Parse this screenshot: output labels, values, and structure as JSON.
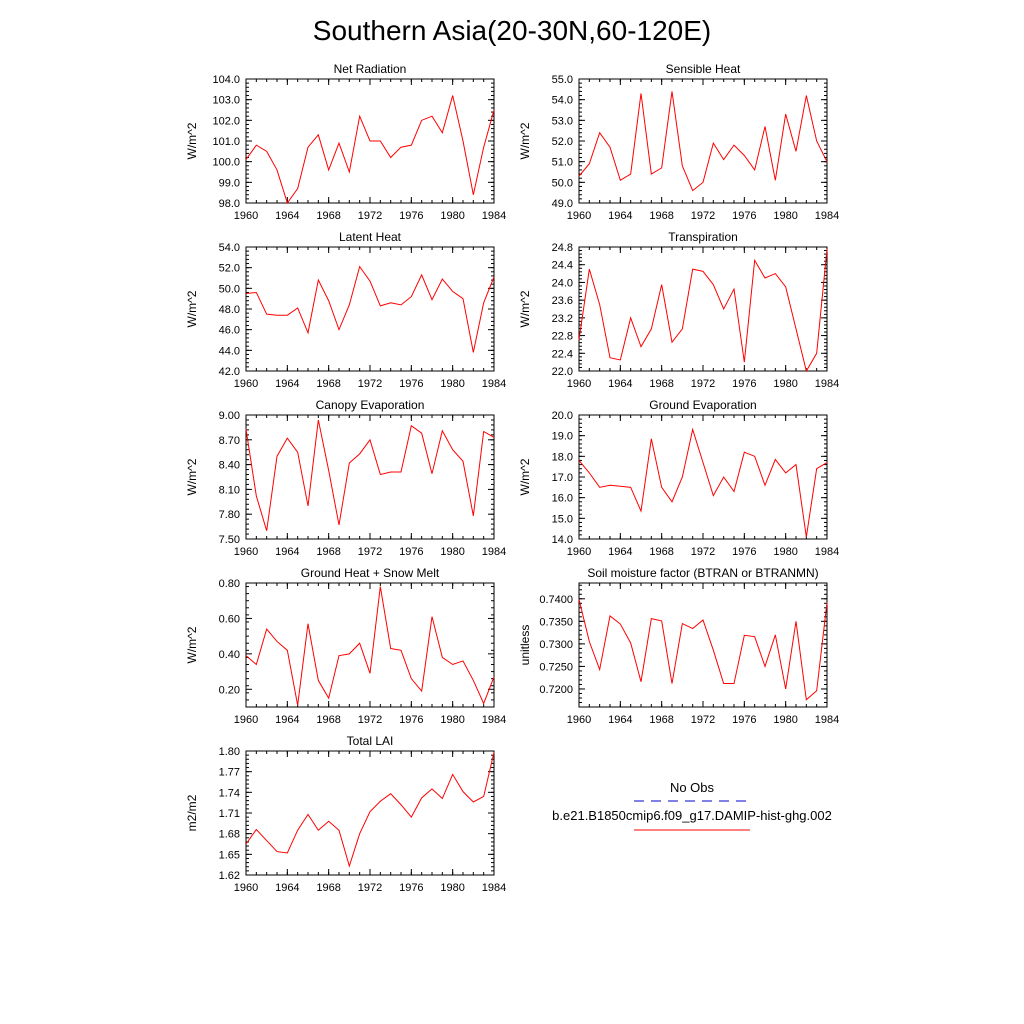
{
  "page": {
    "title": "Southern Asia(20-30N,60-120E)"
  },
  "colors": {
    "model_line": "#ff0000",
    "obs_line": "#0000cc",
    "axis": "#000000"
  },
  "legend": {
    "obs_label": "No Obs",
    "model_label": "b.e21.B1850cmip6.f09_g17.DAMIP-hist-ghg.002"
  },
  "chart_data": [
    {
      "type": "line",
      "title": "Net Radiation",
      "ylabel": "W/m^2",
      "x": [
        1960,
        1961,
        1962,
        1963,
        1964,
        1965,
        1966,
        1967,
        1968,
        1969,
        1970,
        1971,
        1972,
        1973,
        1974,
        1975,
        1976,
        1977,
        1978,
        1979,
        1980,
        1981,
        1982,
        1983,
        1984
      ],
      "xticks": [
        "1960",
        "1964",
        "1968",
        "1972",
        "1976",
        "1980",
        "1984"
      ],
      "ylim": [
        98.0,
        104.0
      ],
      "yticks": [
        "98.0",
        "99.0",
        "100.0",
        "101.0",
        "102.0",
        "103.0",
        "104.0"
      ],
      "series": [
        {
          "values": [
            100.1,
            100.8,
            100.5,
            99.6,
            98.0,
            98.7,
            100.7,
            101.3,
            99.6,
            100.9,
            99.5,
            102.2,
            101.0,
            101.0,
            100.2,
            100.7,
            100.8,
            102.0,
            102.2,
            101.4,
            103.2,
            101.0,
            98.4,
            100.7,
            102.5
          ]
        }
      ]
    },
    {
      "type": "line",
      "title": "Sensible Heat",
      "ylabel": "W/m^2",
      "x": [
        1960,
        1961,
        1962,
        1963,
        1964,
        1965,
        1966,
        1967,
        1968,
        1969,
        1970,
        1971,
        1972,
        1973,
        1974,
        1975,
        1976,
        1977,
        1978,
        1979,
        1980,
        1981,
        1982,
        1983,
        1984
      ],
      "xticks": [
        "1960",
        "1964",
        "1968",
        "1972",
        "1976",
        "1980",
        "1984"
      ],
      "ylim": [
        49.0,
        55.0
      ],
      "yticks": [
        "49.0",
        "50.0",
        "51.0",
        "52.0",
        "53.0",
        "54.0",
        "55.0"
      ],
      "series": [
        {
          "values": [
            50.3,
            50.9,
            52.4,
            51.7,
            50.1,
            50.4,
            54.3,
            50.4,
            50.7,
            54.4,
            50.8,
            49.6,
            50.0,
            51.9,
            51.1,
            51.8,
            51.3,
            50.6,
            52.7,
            50.1,
            53.3,
            51.5,
            54.2,
            52.0,
            51.0
          ]
        }
      ]
    },
    {
      "type": "line",
      "title": "Latent Heat",
      "ylabel": "W/m^2",
      "x": [
        1960,
        1961,
        1962,
        1963,
        1964,
        1965,
        1966,
        1967,
        1968,
        1969,
        1970,
        1971,
        1972,
        1973,
        1974,
        1975,
        1976,
        1977,
        1978,
        1979,
        1980,
        1981,
        1982,
        1983,
        1984
      ],
      "xticks": [
        "1960",
        "1964",
        "1968",
        "1972",
        "1976",
        "1980",
        "1984"
      ],
      "ylim": [
        42.0,
        54.0
      ],
      "yticks": [
        "42.0",
        "44.0",
        "46.0",
        "48.0",
        "50.0",
        "52.0",
        "54.0"
      ],
      "series": [
        {
          "values": [
            49.5,
            49.6,
            47.5,
            47.4,
            47.4,
            48.1,
            45.7,
            50.8,
            48.8,
            46.0,
            48.4,
            52.1,
            50.7,
            48.3,
            48.6,
            48.4,
            49.2,
            51.3,
            48.9,
            50.9,
            49.7,
            49.0,
            43.8,
            48.6,
            51.1
          ]
        }
      ]
    },
    {
      "type": "line",
      "title": "Transpiration",
      "ylabel": "W/m^2",
      "x": [
        1960,
        1961,
        1962,
        1963,
        1964,
        1965,
        1966,
        1967,
        1968,
        1969,
        1970,
        1971,
        1972,
        1973,
        1974,
        1975,
        1976,
        1977,
        1978,
        1979,
        1980,
        1981,
        1982,
        1983,
        1984
      ],
      "xticks": [
        "1960",
        "1964",
        "1968",
        "1972",
        "1976",
        "1980",
        "1984"
      ],
      "ylim": [
        22.0,
        24.8
      ],
      "yticks": [
        "22.0",
        "22.4",
        "22.8",
        "23.2",
        "23.6",
        "24.0",
        "24.4",
        "24.8"
      ],
      "series": [
        {
          "values": [
            22.7,
            24.3,
            23.5,
            22.3,
            22.25,
            23.2,
            22.55,
            22.95,
            23.95,
            22.65,
            22.95,
            24.3,
            24.25,
            23.95,
            23.4,
            23.85,
            22.2,
            24.5,
            24.1,
            24.2,
            23.9,
            22.95,
            22.0,
            22.4,
            24.75
          ]
        }
      ]
    },
    {
      "type": "line",
      "title": "Canopy Evaporation",
      "ylabel": "W/m^2",
      "x": [
        1960,
        1961,
        1962,
        1963,
        1964,
        1965,
        1966,
        1967,
        1968,
        1969,
        1970,
        1971,
        1972,
        1973,
        1974,
        1975,
        1976,
        1977,
        1978,
        1979,
        1980,
        1981,
        1982,
        1983,
        1984
      ],
      "xticks": [
        "1960",
        "1964",
        "1968",
        "1972",
        "1976",
        "1980",
        "1984"
      ],
      "ylim": [
        7.5,
        9.0
      ],
      "yticks": [
        "7.50",
        "7.80",
        "8.10",
        "8.40",
        "8.70",
        "9.00"
      ],
      "series": [
        {
          "values": [
            8.83,
            8.02,
            7.6,
            8.5,
            8.72,
            8.55,
            7.9,
            8.94,
            8.33,
            7.67,
            8.42,
            8.53,
            8.7,
            8.28,
            8.31,
            8.31,
            8.87,
            8.78,
            8.29,
            8.81,
            8.58,
            8.44,
            7.78,
            8.8,
            8.73
          ]
        }
      ]
    },
    {
      "type": "line",
      "title": "Ground Evaporation",
      "ylabel": "W/m^2",
      "x": [
        1960,
        1961,
        1962,
        1963,
        1964,
        1965,
        1966,
        1967,
        1968,
        1969,
        1970,
        1971,
        1972,
        1973,
        1974,
        1975,
        1976,
        1977,
        1978,
        1979,
        1980,
        1981,
        1982,
        1983,
        1984
      ],
      "xticks": [
        "1960",
        "1964",
        "1968",
        "1972",
        "1976",
        "1980",
        "1984"
      ],
      "ylim": [
        14.0,
        20.0
      ],
      "yticks": [
        "14.0",
        "15.0",
        "16.0",
        "17.0",
        "18.0",
        "19.0",
        "20.0"
      ],
      "series": [
        {
          "values": [
            17.8,
            17.2,
            16.5,
            16.6,
            16.55,
            16.5,
            15.35,
            18.85,
            16.5,
            15.8,
            17.0,
            19.3,
            17.7,
            16.1,
            17.0,
            16.3,
            18.2,
            18.0,
            16.6,
            17.85,
            17.2,
            17.6,
            14.1,
            17.4,
            17.7
          ]
        }
      ]
    },
    {
      "type": "line",
      "title": "Ground Heat + Snow Melt",
      "ylabel": "W/m^2",
      "x": [
        1960,
        1961,
        1962,
        1963,
        1964,
        1965,
        1966,
        1967,
        1968,
        1969,
        1970,
        1971,
        1972,
        1973,
        1974,
        1975,
        1976,
        1977,
        1978,
        1979,
        1980,
        1981,
        1982,
        1983,
        1984
      ],
      "xticks": [
        "1960",
        "1964",
        "1968",
        "1972",
        "1976",
        "1980",
        "1984"
      ],
      "ylim": [
        0.1,
        0.8
      ],
      "yticks": [
        "0.20",
        "0.40",
        "0.60",
        "0.80"
      ],
      "series": [
        {
          "values": [
            0.39,
            0.34,
            0.54,
            0.47,
            0.42,
            0.11,
            0.57,
            0.25,
            0.15,
            0.39,
            0.4,
            0.46,
            0.29,
            0.78,
            0.43,
            0.42,
            0.26,
            0.19,
            0.61,
            0.38,
            0.34,
            0.36,
            0.25,
            0.12,
            0.27
          ]
        }
      ]
    },
    {
      "type": "line",
      "title": "Soil moisture factor (BTRAN or BTRANMN)",
      "ylabel": "unitless",
      "x": [
        1960,
        1961,
        1962,
        1963,
        1964,
        1965,
        1966,
        1967,
        1968,
        1969,
        1970,
        1971,
        1972,
        1973,
        1974,
        1975,
        1976,
        1977,
        1978,
        1979,
        1980,
        1981,
        1982,
        1983,
        1984
      ],
      "xticks": [
        "1960",
        "1964",
        "1968",
        "1972",
        "1976",
        "1980",
        "1984"
      ],
      "ylim": [
        0.716,
        0.7435
      ],
      "yticks": [
        "0.7200",
        "0.7250",
        "0.7300",
        "0.7350",
        "0.7400"
      ],
      "series": [
        {
          "values": [
            0.7399,
            0.7305,
            0.7243,
            0.7362,
            0.7344,
            0.7302,
            0.7216,
            0.7356,
            0.7351,
            0.7212,
            0.7345,
            0.7334,
            0.7353,
            0.7286,
            0.7212,
            0.7212,
            0.7319,
            0.7316,
            0.725,
            0.732,
            0.72,
            0.735,
            0.7176,
            0.7196,
            0.7392
          ]
        }
      ]
    },
    {
      "type": "line",
      "title": "Total LAI",
      "ylabel": "m2/m2",
      "x": [
        1960,
        1961,
        1962,
        1963,
        1964,
        1965,
        1966,
        1967,
        1968,
        1969,
        1970,
        1971,
        1972,
        1973,
        1974,
        1975,
        1976,
        1977,
        1978,
        1979,
        1980,
        1981,
        1982,
        1983,
        1984
      ],
      "xticks": [
        "1960",
        "1964",
        "1968",
        "1972",
        "1976",
        "1980",
        "1984"
      ],
      "ylim": [
        1.62,
        1.8
      ],
      "yticks": [
        "1.62",
        "1.65",
        "1.68",
        "1.71",
        "1.74",
        "1.77",
        "1.80"
      ],
      "series": [
        {
          "values": [
            1.665,
            1.686,
            1.67,
            1.654,
            1.652,
            1.685,
            1.708,
            1.685,
            1.698,
            1.685,
            1.633,
            1.68,
            1.712,
            1.727,
            1.738,
            1.722,
            1.704,
            1.732,
            1.745,
            1.731,
            1.766,
            1.741,
            1.726,
            1.734,
            1.798
          ]
        }
      ]
    }
  ]
}
